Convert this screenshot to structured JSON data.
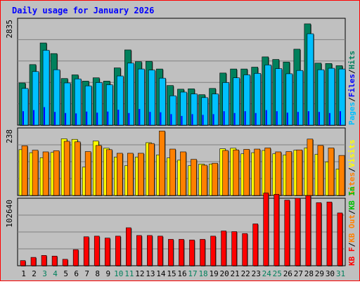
{
  "title": "Daily usage for January 2026",
  "colors": {
    "background": "#c0c0c0",
    "border": "#ff0000",
    "title": "#0000ff",
    "hits": "#00805c",
    "files": "#0000ff",
    "pages": "#00c0ff",
    "visits": "#ffff00",
    "sites": "#ff8000",
    "kbin": "#00c000",
    "kbout": "#ff8000",
    "kbf": "#ff0000",
    "weekend": "#00805c"
  },
  "legend_top": {
    "pages": "Pages",
    "files": "Files",
    "hits": "Hits",
    "sep": "/"
  },
  "legend_mid": {
    "sites": "Sites",
    "visits": "Visits",
    "sep": "/"
  },
  "legend_bot": {
    "kbf": "KB F",
    "kbout": "KB Out",
    "kbin": "KB In",
    "sep": "/"
  },
  "chart_data": {
    "type": "bar",
    "title": "Daily usage for January 2026",
    "categories": [
      "1",
      "2",
      "3",
      "4",
      "5",
      "6",
      "7",
      "8",
      "9",
      "10",
      "11",
      "12",
      "13",
      "14",
      "15",
      "16",
      "17",
      "18",
      "19",
      "20",
      "21",
      "22",
      "23",
      "24",
      "25",
      "26",
      "27",
      "28",
      "29",
      "30",
      "31"
    ],
    "weekend_days": [
      3,
      4,
      10,
      11,
      17,
      18,
      24,
      25,
      31
    ],
    "panels": [
      {
        "name": "hits-files-pages",
        "ymax_label": "2835",
        "ymax": 2835,
        "series": [
          {
            "name": "Hits",
            "values": [
              1150,
              1650,
              2240,
              1950,
              1270,
              1370,
              1200,
              1290,
              1200,
              1560,
              2050,
              1730,
              1740,
              1530,
              1080,
              980,
              990,
              830,
              1000,
              1420,
              1530,
              1530,
              1580,
              1860,
              1790,
              1720,
              2070,
              2760,
              1690,
              1680,
              1620
            ]
          },
          {
            "name": "Files",
            "values": [
              380,
              410,
              490,
              360,
              330,
              320,
              370,
              340,
              370,
              420,
              330,
              440,
              360,
              350,
              300,
              250,
              300,
              280,
              300,
              380,
              330,
              380,
              330,
              410,
              380,
              340,
              360,
              380,
              360,
              330,
              380
            ]
          },
          {
            "name": "Pages",
            "values": [
              1000,
              1460,
              2040,
              1510,
              1150,
              1260,
              1070,
              1160,
              1100,
              1340,
              1690,
              1530,
              1500,
              1280,
              800,
              900,
              850,
              750,
              850,
              1160,
              1290,
              1370,
              1410,
              1640,
              1540,
              1400,
              1490,
              2490,
              1510,
              1550,
              1530
            ]
          }
        ]
      },
      {
        "name": "visits-sites",
        "ymax_label": "238",
        "ymax": 238,
        "series": [
          {
            "name": "Visits",
            "values": [
              165,
              154,
              136,
              155,
              204,
              202,
              102,
              196,
              170,
              138,
              107,
              138,
              190,
              146,
              135,
              127,
              107,
              113,
              113,
              168,
              170,
              150,
              154,
              162,
              150,
              146,
              163,
              171,
              148,
              121,
              95
            ]
          },
          {
            "name": "Sites",
            "values": [
              179,
              163,
              157,
              161,
              195,
              193,
              158,
              180,
              165,
              152,
              152,
              152,
              187,
              232,
              167,
              157,
              130,
              109,
              116,
              162,
              164,
              166,
              167,
              171,
              157,
              158,
              164,
              203,
              180,
              171,
              144
            ]
          }
        ]
      },
      {
        "name": "kb",
        "ymax_label": "102640",
        "ymax": 102640,
        "series": [
          {
            "name": "KB F",
            "values": [
              8000,
              13000,
              16000,
              15000,
              10000,
              25000,
              45000,
              46000,
              43000,
              46000,
              59000,
              47000,
              47000,
              46000,
              41000,
              41000,
              40000,
              41000,
              46000,
              54000,
              53000,
              50000,
              65000,
              113000,
              111000,
              102000,
              105000,
              109000,
              98000,
              99000,
              82000
            ]
          },
          {
            "name": "KB Out",
            "values": []
          },
          {
            "name": "KB In",
            "values": []
          }
        ]
      }
    ]
  }
}
